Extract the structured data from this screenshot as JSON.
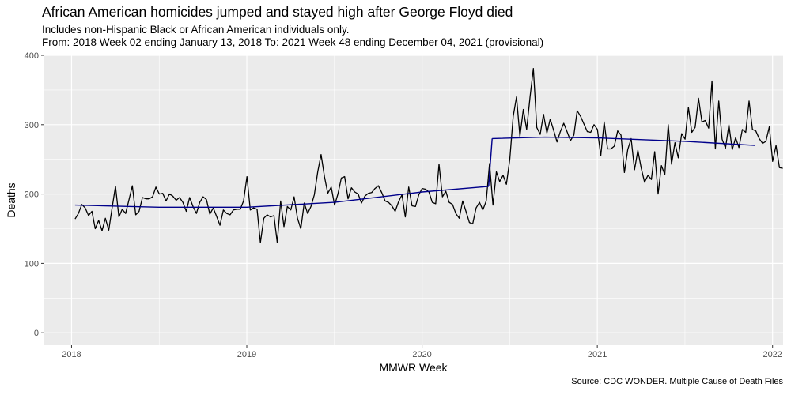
{
  "chart_data": {
    "type": "line",
    "title": "African American homicides jumped and stayed high after George Floyd died",
    "subtitle": [
      "Includes non-Hispanic Black or African American individuals only.",
      "From: 2018 Week 02 ending January 13, 2018 To: 2021 Week 48 ending December 04, 2021 (provisional)"
    ],
    "caption": "Source: CDC WONDER. Multiple Cause of Death Files",
    "xlabel": "MMWR Week",
    "ylabel": "Deaths",
    "xlim": [
      2017.84,
      2022.06
    ],
    "ylim": [
      -18,
      400
    ],
    "x_ticks": [
      2018,
      2019,
      2020,
      2021,
      2022
    ],
    "x_tick_labels": [
      "2018",
      "2019",
      "2020",
      "2021",
      "2022"
    ],
    "y_ticks": [
      0,
      100,
      200,
      300,
      400
    ],
    "y_tick_labels": [
      "0",
      "100",
      "200",
      "300",
      "400"
    ],
    "grid": true,
    "background": "#ebebeb",
    "series": [
      {
        "kind": "weekly",
        "color": "#000000",
        "x_start": 2018.02,
        "x_step": 0.01923,
        "values": [
          164,
          172,
          185,
          180,
          169,
          175,
          150,
          162,
          147,
          165,
          148,
          180,
          211,
          167,
          178,
          172,
          192,
          212,
          170,
          175,
          195,
          193,
          193,
          196,
          210,
          200,
          201,
          190,
          200,
          197,
          191,
          195,
          188,
          175,
          195,
          182,
          172,
          188,
          196,
          192,
          171,
          180,
          168,
          155,
          177,
          172,
          170,
          177,
          178,
          178,
          190,
          225,
          177,
          180,
          178,
          130,
          165,
          170,
          167,
          169,
          130,
          190,
          153,
          182,
          177,
          196,
          165,
          150,
          187,
          172,
          182,
          199,
          232,
          257,
          225,
          201,
          210,
          184,
          200,
          223,
          225,
          193,
          209,
          203,
          200,
          187,
          197,
          201,
          202,
          208,
          212,
          202,
          190,
          188,
          183,
          175,
          189,
          199,
          167,
          210,
          183,
          182,
          199,
          208,
          207,
          203,
          188,
          186,
          243,
          196,
          204,
          188,
          185,
          172,
          165,
          190,
          175,
          159,
          157,
          180,
          188,
          177,
          190,
          244,
          184,
          232,
          218,
          227,
          214,
          250,
          312,
          340,
          283,
          322,
          293,
          340,
          381,
          296,
          286,
          315,
          288,
          308,
          292,
          275,
          290,
          302,
          290,
          277,
          285,
          320,
          312,
          301,
          290,
          289,
          300,
          293,
          255,
          304,
          265,
          265,
          269,
          291,
          285,
          231,
          264,
          280,
          235,
          263,
          237,
          217,
          227,
          221,
          261,
          200,
          241,
          228,
          300,
          243,
          274,
          252,
          287,
          279,
          325,
          289,
          296,
          338,
          304,
          306,
          295,
          363,
          265,
          334,
          279,
          266,
          300,
          264,
          281,
          267,
          293,
          289,
          334,
          293,
          291,
          280,
          273,
          276,
          297,
          247,
          270,
          238,
          237
        ]
      },
      {
        "kind": "trend",
        "color": "#00008b",
        "segments": [
          {
            "x": [
              2018.02,
              2018.5,
              2019.0,
              2019.5,
              2020.0,
              2020.38
            ],
            "y": [
              184,
              181,
              181,
              188,
              203,
              211
            ]
          },
          {
            "x": [
              2020.4,
              2020.7,
              2021.0,
              2021.5,
              2021.9
            ],
            "y": [
              280,
              282,
              281,
              276,
              270
            ]
          }
        ]
      }
    ]
  }
}
